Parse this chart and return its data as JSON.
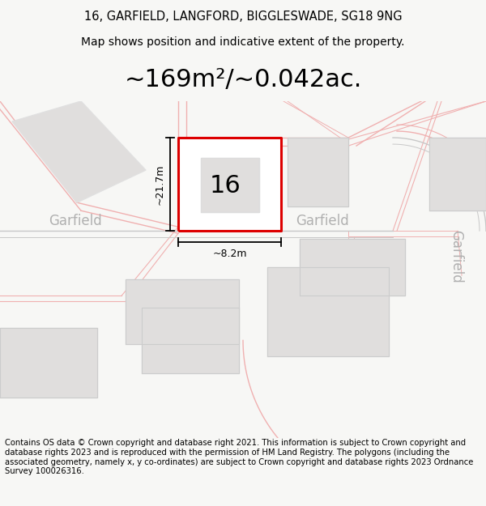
{
  "title_line1": "16, GARFIELD, LANGFORD, BIGGLESWADE, SG18 9NG",
  "title_line2": "Map shows position and indicative extent of the property.",
  "area_text": "~169m²/~0.042ac.",
  "footnote": "Contains OS data © Crown copyright and database right 2021. This information is subject to Crown copyright and database rights 2023 and is reproduced with the permission of HM Land Registry. The polygons (including the associated geometry, namely x, y co-ordinates) are subject to Crown copyright and database rights 2023 Ordnance Survey 100026316.",
  "map_bg": "#f7f7f5",
  "road_line_color": "#f0b0b0",
  "road_line_lw": 1.0,
  "red_color": "#dd0000",
  "dim_color": "#000000",
  "building_fill": "#e0dedd",
  "building_edge": "#cccccc",
  "road_text_color": "#aaaaaa",
  "garfield_text_color": "#b0b0b0",
  "label_16_fontsize": 22,
  "dim_label_size": 9,
  "road_label_size": 12,
  "area_fontsize": 22,
  "title_fontsize": 10.5,
  "footnote_fontsize": 7.2,
  "title_bg": "#f7f7f5",
  "foot_bg": "#f7f7f5"
}
